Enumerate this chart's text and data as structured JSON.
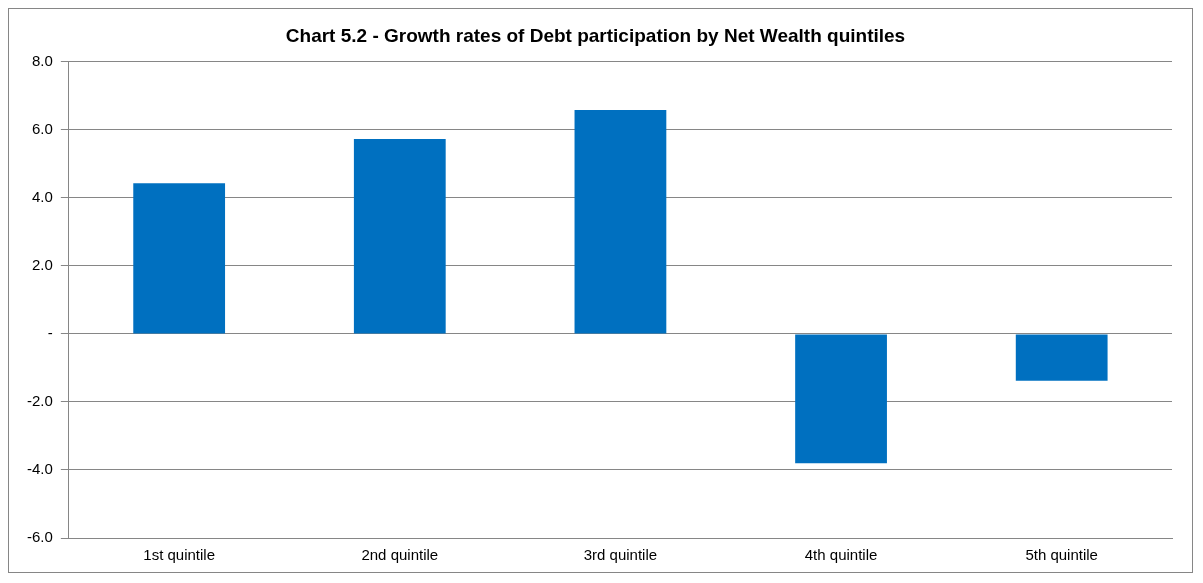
{
  "chart_data": {
    "type": "bar",
    "title": "Chart 5.2 - Growth rates of Debt participation by Net Wealth quintiles",
    "categories": [
      "1st quintile",
      "2nd quintile",
      "3rd quintile",
      "4th quintile",
      "5th quintile"
    ],
    "values": [
      4.43,
      5.73,
      6.58,
      -3.8,
      -1.38
    ],
    "color": "#0070c0",
    "ylim": [
      -6,
      8
    ],
    "yticks": [
      {
        "value": -6,
        "label": "-6.0"
      },
      {
        "value": -4,
        "label": "-4.0"
      },
      {
        "value": -2,
        "label": "-2.0"
      },
      {
        "value": 0,
        "label": "-"
      },
      {
        "value": 2,
        "label": "2.0"
      },
      {
        "value": 4,
        "label": "4.0"
      },
      {
        "value": 6,
        "label": "6.0"
      },
      {
        "value": 8,
        "label": "8.0"
      }
    ],
    "grid": "y",
    "legend": false
  }
}
